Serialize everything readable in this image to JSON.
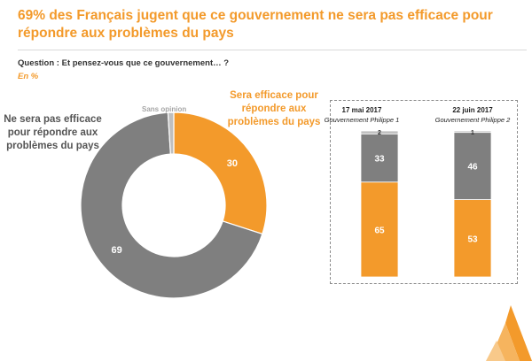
{
  "title": "69% des Français jugent que ce gouvernement ne sera pas efficace pour répondre aux problèmes du pays",
  "question": "Question : Et pensez-vous que ce gouvernement… ?",
  "unit": "En %",
  "colors": {
    "orange": "#F39A2B",
    "gray": "#7F7F7F",
    "light_gray": "#BFBFBF"
  },
  "chart_data": [
    {
      "type": "pie",
      "variant": "donut",
      "slices": [
        {
          "label": "Sera efficace pour répondre aux problèmes du pays",
          "value": 30,
          "color": "#F39A2B"
        },
        {
          "label": "Ne sera pas efficace pour répondre aux problèmes du pays",
          "value": 69,
          "color": "#7F7F7F"
        },
        {
          "label": "Sans opinion",
          "value": 1,
          "color": "#BFBFBF"
        }
      ]
    },
    {
      "type": "bar",
      "stacked": true,
      "categories": [
        {
          "date": "17 mai 2017",
          "government": "Gouvernement Philippe 1"
        },
        {
          "date": "22 juin 2017",
          "government": "Gouvernement Philippe 2"
        }
      ],
      "series": [
        {
          "name": "Sera efficace",
          "values": [
            65,
            53
          ],
          "color": "#F39A2B"
        },
        {
          "name": "Ne sera pas efficace",
          "values": [
            33,
            46
          ],
          "color": "#7F7F7F"
        },
        {
          "name": "Sans opinion",
          "values": [
            2,
            1
          ],
          "color": "#BFBFBF"
        }
      ]
    }
  ]
}
